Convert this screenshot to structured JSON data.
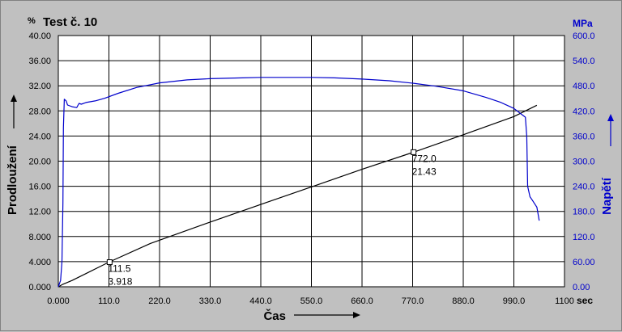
{
  "colors": {
    "background": "#c0c0c0",
    "plot_bg": "#ffffff",
    "grid": "#000000",
    "left_series": "#000000",
    "right_series": "#0000cc"
  },
  "chart_data": {
    "type": "line",
    "title": "Test č.  10",
    "xlabel": "Čas",
    "xunit": "sec",
    "ylabel_left": "Prodloužení",
    "yunit_left": "%",
    "ylabel_right": "Napětí",
    "yunit_right": "MPa",
    "xlim": [
      0,
      1100
    ],
    "ylim_left": [
      0,
      40
    ],
    "ylim_right": [
      0,
      600
    ],
    "grid": true,
    "x_ticks": [
      "0.000",
      "110.0",
      "220.0",
      "330.0",
      "440.0",
      "550.0",
      "660.0",
      "770.0",
      "880.0",
      "990.0",
      "1100"
    ],
    "y_ticks_left": [
      "0.000",
      "4.000",
      "8.000",
      "12.00",
      "16.00",
      "20.00",
      "24.00",
      "28.00",
      "32.00",
      "36.00",
      "40.00"
    ],
    "y_ticks_right": [
      "0.00",
      "60.00",
      "120.0",
      "180.0",
      "240.0",
      "300.0",
      "360.0",
      "420.0",
      "480.0",
      "540.0",
      "600.0"
    ],
    "series": [
      {
        "name": "Prodloužení",
        "axis": "left",
        "x": [
          0,
          10,
          30,
          60,
          110,
          200,
          330,
          440,
          550,
          660,
          772,
          880,
          990,
          1040
        ],
        "y": [
          0,
          0.4,
          1.0,
          2.1,
          3.92,
          6.9,
          10.3,
          13.1,
          15.9,
          18.7,
          21.43,
          24.2,
          27.1,
          28.9
        ]
      },
      {
        "name": "Napětí",
        "axis": "right",
        "x": [
          0,
          5,
          8,
          10,
          11,
          13,
          17,
          20,
          30,
          40,
          45,
          50,
          60,
          80,
          100,
          130,
          170,
          220,
          280,
          330,
          400,
          440,
          500,
          550,
          600,
          660,
          720,
          772,
          820,
          880,
          930,
          960,
          990,
          1015,
          1018,
          1020,
          1025,
          1030,
          1040,
          1045
        ],
        "y": [
          0,
          15,
          60,
          200,
          380,
          448,
          444,
          434,
          430,
          428,
          438,
          436,
          440,
          444,
          450,
          462,
          476,
          487,
          494,
          497,
          499,
          500,
          500,
          500,
          499,
          496,
          492,
          486,
          479,
          468,
          452,
          441,
          426,
          405,
          360,
          240,
          215,
          207,
          190,
          158
        ]
      }
    ],
    "annotations": [
      {
        "x": 111.5,
        "y": 3.918,
        "label_x": "111.5",
        "label_y": "3.918"
      },
      {
        "x": 772.0,
        "y": 21.43,
        "label_x": "772.0",
        "label_y": "21.43"
      }
    ]
  }
}
